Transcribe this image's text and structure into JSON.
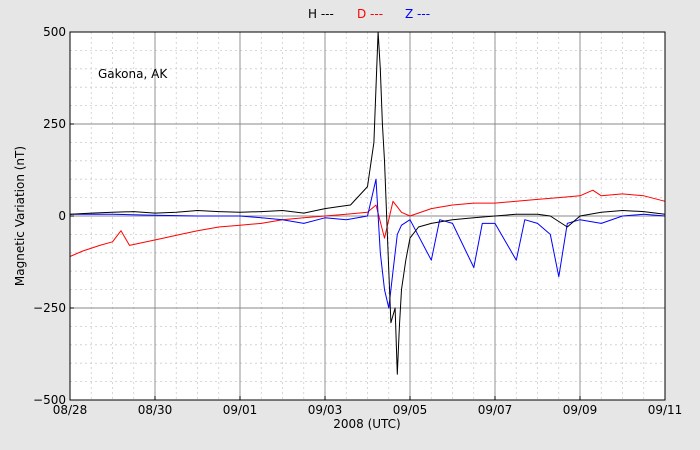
{
  "chart_data": {
    "type": "line",
    "xlabel": "2008 (UTC)",
    "ylabel": "Magnetic Variation (nT)",
    "annotation": "Gakona, AK",
    "xlim_days": [
      0,
      14
    ],
    "x_tick_labels": [
      "08/28",
      "08/30",
      "09/01",
      "09/03",
      "09/05",
      "09/07",
      "09/09",
      "09/11"
    ],
    "x_tick_days": [
      0,
      2,
      4,
      6,
      8,
      10,
      12,
      14
    ],
    "ylim": [
      -500,
      500
    ],
    "y_ticks": [
      500,
      250,
      0,
      -250,
      -500
    ],
    "y_tick_labels": [
      "500",
      "250",
      "0",
      "−250",
      "−500"
    ],
    "grid": true,
    "legend_position": "top-center",
    "series": [
      {
        "name": "H ---",
        "color": "#000000",
        "points": [
          [
            0.0,
            5
          ],
          [
            0.5,
            8
          ],
          [
            1.0,
            10
          ],
          [
            1.5,
            12
          ],
          [
            2.0,
            8
          ],
          [
            2.5,
            10
          ],
          [
            3.0,
            15
          ],
          [
            3.5,
            12
          ],
          [
            4.0,
            10
          ],
          [
            4.5,
            12
          ],
          [
            5.0,
            15
          ],
          [
            5.5,
            8
          ],
          [
            6.0,
            20
          ],
          [
            6.3,
            25
          ],
          [
            6.6,
            30
          ],
          [
            7.0,
            80
          ],
          [
            7.15,
            200
          ],
          [
            7.25,
            500
          ],
          [
            7.3,
            400
          ],
          [
            7.35,
            250
          ],
          [
            7.4,
            150
          ],
          [
            7.5,
            -150
          ],
          [
            7.55,
            -290
          ],
          [
            7.65,
            -250
          ],
          [
            7.7,
            -430
          ],
          [
            7.75,
            -300
          ],
          [
            7.8,
            -200
          ],
          [
            7.9,
            -120
          ],
          [
            8.0,
            -60
          ],
          [
            8.2,
            -30
          ],
          [
            8.5,
            -20
          ],
          [
            9.0,
            -10
          ],
          [
            9.5,
            -5
          ],
          [
            10.0,
            0
          ],
          [
            10.5,
            5
          ],
          [
            11.0,
            5
          ],
          [
            11.3,
            0
          ],
          [
            11.7,
            -30
          ],
          [
            12.0,
            0
          ],
          [
            12.5,
            10
          ],
          [
            13.0,
            15
          ],
          [
            13.5,
            12
          ],
          [
            14.0,
            5
          ]
        ]
      },
      {
        "name": "D ---",
        "color": "#ff0000",
        "points": [
          [
            0.0,
            -110
          ],
          [
            0.3,
            -95
          ],
          [
            0.7,
            -80
          ],
          [
            1.0,
            -70
          ],
          [
            1.2,
            -40
          ],
          [
            1.4,
            -80
          ],
          [
            1.8,
            -70
          ],
          [
            2.2,
            -60
          ],
          [
            2.6,
            -50
          ],
          [
            3.0,
            -40
          ],
          [
            3.5,
            -30
          ],
          [
            4.0,
            -25
          ],
          [
            4.5,
            -20
          ],
          [
            5.0,
            -10
          ],
          [
            5.5,
            -5
          ],
          [
            6.0,
            0
          ],
          [
            6.5,
            5
          ],
          [
            7.0,
            10
          ],
          [
            7.2,
            30
          ],
          [
            7.4,
            -60
          ],
          [
            7.6,
            40
          ],
          [
            7.8,
            10
          ],
          [
            8.0,
            0
          ],
          [
            8.5,
            20
          ],
          [
            9.0,
            30
          ],
          [
            9.5,
            35
          ],
          [
            10.0,
            35
          ],
          [
            10.5,
            40
          ],
          [
            11.0,
            45
          ],
          [
            11.5,
            50
          ],
          [
            12.0,
            55
          ],
          [
            12.3,
            70
          ],
          [
            12.5,
            55
          ],
          [
            13.0,
            60
          ],
          [
            13.5,
            55
          ],
          [
            14.0,
            40
          ]
        ]
      },
      {
        "name": "Z ---",
        "color": "#0000ff",
        "points": [
          [
            0.0,
            5
          ],
          [
            1.0,
            5
          ],
          [
            2.0,
            2
          ],
          [
            3.0,
            0
          ],
          [
            4.0,
            0
          ],
          [
            4.5,
            -5
          ],
          [
            5.0,
            -10
          ],
          [
            5.5,
            -20
          ],
          [
            6.0,
            -5
          ],
          [
            6.5,
            -10
          ],
          [
            7.0,
            0
          ],
          [
            7.2,
            100
          ],
          [
            7.3,
            -100
          ],
          [
            7.4,
            -200
          ],
          [
            7.5,
            -250
          ],
          [
            7.6,
            -150
          ],
          [
            7.7,
            -50
          ],
          [
            7.8,
            -25
          ],
          [
            8.0,
            -10
          ],
          [
            8.5,
            -120
          ],
          [
            8.7,
            -10
          ],
          [
            9.0,
            -20
          ],
          [
            9.5,
            -140
          ],
          [
            9.7,
            -20
          ],
          [
            10.0,
            -20
          ],
          [
            10.5,
            -120
          ],
          [
            10.7,
            -10
          ],
          [
            11.0,
            -20
          ],
          [
            11.3,
            -50
          ],
          [
            11.5,
            -165
          ],
          [
            11.7,
            -20
          ],
          [
            12.0,
            -10
          ],
          [
            12.5,
            -20
          ],
          [
            13.0,
            0
          ],
          [
            13.5,
            5
          ],
          [
            14.0,
            0
          ]
        ]
      }
    ]
  }
}
